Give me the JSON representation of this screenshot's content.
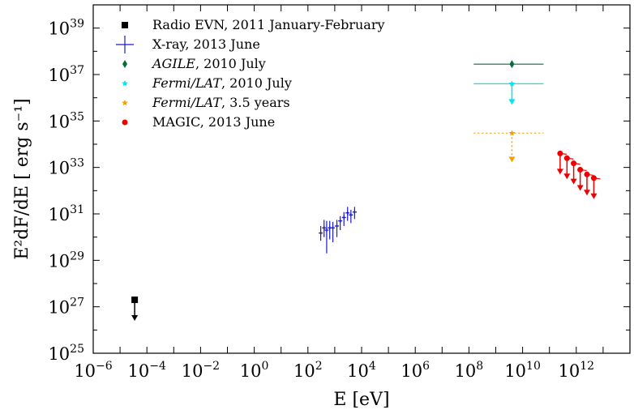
{
  "chart_data": {
    "type": "scatter",
    "xlabel": "E [eV]",
    "ylabel": "E²dF/dE [ erg s⁻¹]",
    "x_scale": "log",
    "y_scale": "log",
    "xlim": [
      1e-06,
      100000000000000.0
    ],
    "ylim": [
      1e+25,
      1e+40
    ],
    "x_ticks": [
      {
        "value": 1e-06,
        "base": "10",
        "exp": "−6"
      },
      {
        "value": 0.0001,
        "base": "10",
        "exp": "−4"
      },
      {
        "value": 0.01,
        "base": "10",
        "exp": "−2"
      },
      {
        "value": 1.0,
        "base": "10",
        "exp": "0"
      },
      {
        "value": 100.0,
        "base": "10",
        "exp": "2"
      },
      {
        "value": 10000.0,
        "base": "10",
        "exp": "4"
      },
      {
        "value": 1000000.0,
        "base": "10",
        "exp": "6"
      },
      {
        "value": 100000000.0,
        "base": "10",
        "exp": "8"
      },
      {
        "value": 10000000000.0,
        "base": "10",
        "exp": "10"
      },
      {
        "value": 1000000000000.0,
        "base": "10",
        "exp": "12"
      }
    ],
    "y_ticks": [
      {
        "value": 1e+25,
        "base": "10",
        "exp": "25"
      },
      {
        "value": 1e+27,
        "base": "10",
        "exp": "27"
      },
      {
        "value": 1e+29,
        "base": "10",
        "exp": "29"
      },
      {
        "value": 1e+31,
        "base": "10",
        "exp": "31"
      },
      {
        "value": 1e+33,
        "base": "10",
        "exp": "33"
      },
      {
        "value": 1e+35,
        "base": "10",
        "exp": "35"
      },
      {
        "value": 1e+37,
        "base": "10",
        "exp": "37"
      },
      {
        "value": 1e+39,
        "base": "10",
        "exp": "39"
      }
    ],
    "legend_position": "top-left",
    "series": [
      {
        "name": "Radio EVN, 2011 January-February",
        "name_parts": [
          {
            "text": "Radio EVN, 2011 January-February",
            "italic": false
          }
        ],
        "marker": "square",
        "color": "#000000",
        "points": [
          {
            "x": 3.5e-05,
            "y": 2e+27,
            "upper_limit": true
          }
        ]
      },
      {
        "name": "X-ray, 2013 June",
        "name_parts": [
          {
            "text": "X-ray, 2013 June",
            "italic": false
          }
        ],
        "marker": "cross",
        "color": "#1a1acc",
        "points": [
          {
            "x": 300,
            "y": 1.5e+30,
            "ylo": 7e+29,
            "yhi": 3e+30,
            "xlo": 260,
            "xhi": 340
          },
          {
            "x": 400,
            "y": 2.5e+30,
            "ylo": 1e+30,
            "yhi": 5.5e+30,
            "xlo": 360,
            "xhi": 440
          },
          {
            "x": 500,
            "y": 2e+30,
            "ylo": 2e+29,
            "yhi": 5e+30,
            "xlo": 450,
            "xhi": 560
          },
          {
            "x": 650,
            "y": 2.5e+30,
            "ylo": 8e+29,
            "yhi": 5e+30,
            "xlo": 590,
            "xhi": 720
          },
          {
            "x": 850,
            "y": 2.5e+30,
            "ylo": 6e+29,
            "yhi": 4.5e+30,
            "xlo": 760,
            "xhi": 950
          },
          {
            "x": 1200,
            "y": 3e+30,
            "ylo": 1e+30,
            "yhi": 5.5e+30,
            "xlo": 1050,
            "xhi": 1400
          },
          {
            "x": 1600,
            "y": 5e+30,
            "ylo": 2e+30,
            "yhi": 8e+30,
            "xlo": 1400,
            "xhi": 1800
          },
          {
            "x": 2200,
            "y": 7e+30,
            "ylo": 3e+30,
            "yhi": 1.2e+31,
            "xlo": 1900,
            "xhi": 2500
          },
          {
            "x": 3000,
            "y": 1.1e+31,
            "ylo": 5e+30,
            "yhi": 2e+31,
            "xlo": 2600,
            "xhi": 3400
          },
          {
            "x": 4000,
            "y": 9e+30,
            "ylo": 4e+30,
            "yhi": 1.5e+31,
            "xlo": 3400,
            "xhi": 4700
          },
          {
            "x": 5500,
            "y": 1.2e+31,
            "ylo": 6e+30,
            "yhi": 2e+31,
            "xlo": 4700,
            "xhi": 6500
          }
        ]
      },
      {
        "name": "AGILE, 2010 July",
        "name_parts": [
          {
            "text": "AGILE",
            "italic": true
          },
          {
            "text": ", 2010 July",
            "italic": false
          }
        ],
        "marker": "diamond",
        "color": "#0b6b3a",
        "points": [
          {
            "x": 4000000000.0,
            "y": 2.8e+37,
            "xlo": 150000000.0,
            "xhi": 60000000000.0
          }
        ]
      },
      {
        "name": "Fermi/LAT, 2010 July",
        "name_parts": [
          {
            "text": "Fermi/LAT",
            "italic": true
          },
          {
            "text": ", 2010 July",
            "italic": false
          }
        ],
        "marker": "star",
        "color": "#00e5ee",
        "points": [
          {
            "x": 4000000000.0,
            "y": 4e+36,
            "xlo": 150000000.0,
            "xhi": 60000000000.0,
            "upper_limit": true
          }
        ]
      },
      {
        "name": "Fermi/LAT, 3.5 years",
        "name_parts": [
          {
            "text": "Fermi/LAT",
            "italic": true
          },
          {
            "text": ", 3.5 years",
            "italic": false
          }
        ],
        "marker": "star",
        "color": "#f5a000",
        "dashed": true,
        "points": [
          {
            "x": 4000000000.0,
            "y": 3e+34,
            "xlo": 150000000.0,
            "xhi": 60000000000.0,
            "upper_limit": true
          }
        ]
      },
      {
        "name": "MAGIC, 2013 June",
        "name_parts": [
          {
            "text": "MAGIC, 2013 June",
            "italic": false
          }
        ],
        "marker": "circle",
        "color": "#ee0000",
        "points": [
          {
            "x": 250000000000.0,
            "y": 4e+33,
            "xlo": 200000000000.0,
            "xhi": 320000000000.0,
            "upper_limit": true
          },
          {
            "x": 450000000000.0,
            "y": 2.5e+33,
            "xlo": 350000000000.0,
            "xhi": 560000000000.0,
            "upper_limit": true
          },
          {
            "x": 800000000000.0,
            "y": 1.5e+33,
            "xlo": 630000000000.0,
            "xhi": 1000000000000.0,
            "upper_limit": true
          },
          {
            "x": 1400000000000.0,
            "y": 8e+32,
            "xlo": 1100000000000.0,
            "xhi": 1800000000000.0,
            "upper_limit": true
          },
          {
            "x": 2500000000000.0,
            "y": 5e+32,
            "xlo": 2000000000000.0,
            "xhi": 3200000000000.0,
            "upper_limit": true
          },
          {
            "x": 4500000000000.0,
            "y": 3.5e+32,
            "xlo": 3500000000000.0,
            "xhi": 5600000000000.0,
            "upper_limit": true
          }
        ]
      }
    ]
  }
}
